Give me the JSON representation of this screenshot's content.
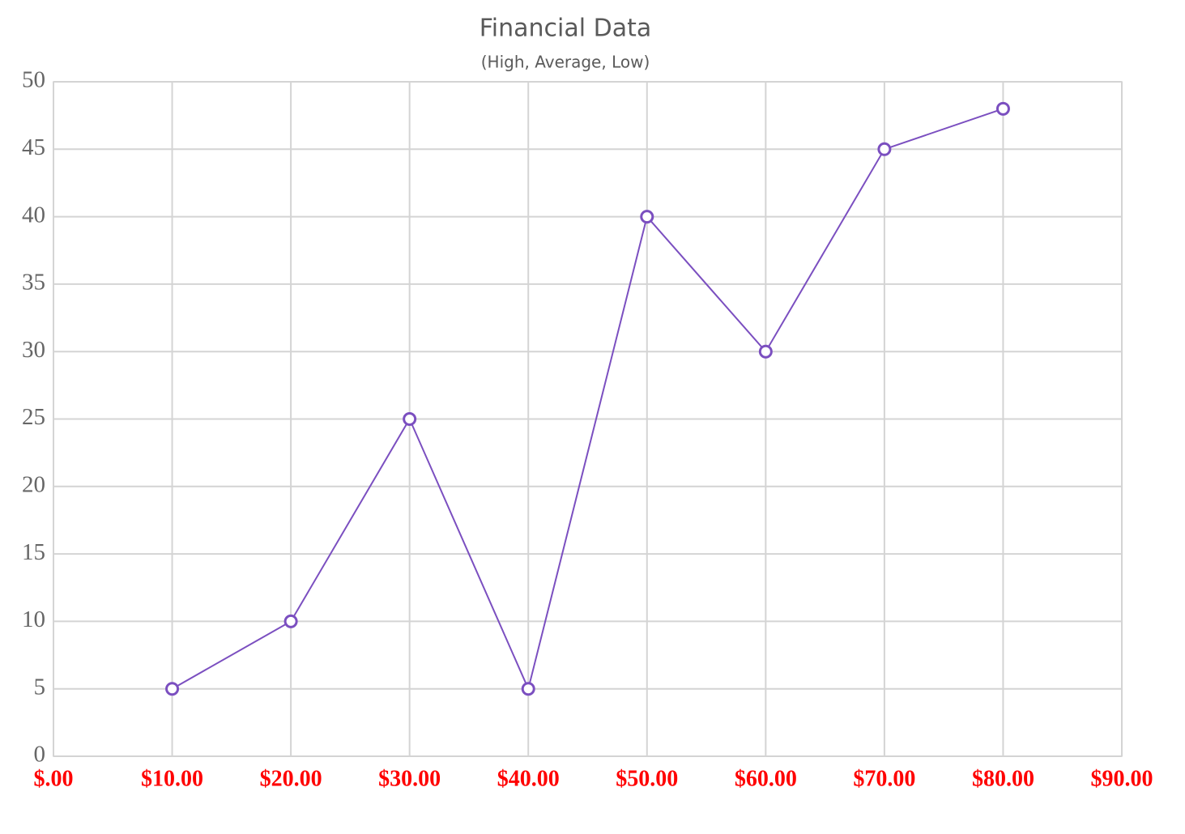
{
  "chart_data": {
    "type": "line",
    "title": "Financial Data",
    "subtitle": "(High, Average, Low)",
    "x": [
      10,
      20,
      30,
      40,
      50,
      60,
      70,
      80
    ],
    "series": [
      {
        "color": "#7b4fc0",
        "values": [
          5,
          10,
          25,
          5,
          40,
          30,
          45,
          48
        ]
      }
    ],
    "xlim": [
      0,
      90
    ],
    "xticks": [
      {
        "value": 0,
        "label": "$.00"
      },
      {
        "value": 10,
        "label": "$10.00"
      },
      {
        "value": 20,
        "label": "$20.00"
      },
      {
        "value": 30,
        "label": "$30.00"
      },
      {
        "value": 40,
        "label": "$40.00"
      },
      {
        "value": 50,
        "label": "$50.00"
      },
      {
        "value": 60,
        "label": "$60.00"
      },
      {
        "value": 70,
        "label": "$70.00"
      },
      {
        "value": 80,
        "label": "$80.00"
      },
      {
        "value": 90,
        "label": "$90.00"
      }
    ],
    "ylim": [
      0,
      50
    ],
    "yticks": [
      0,
      5,
      10,
      15,
      20,
      25,
      30,
      35,
      40,
      45,
      50
    ],
    "grid": true
  }
}
